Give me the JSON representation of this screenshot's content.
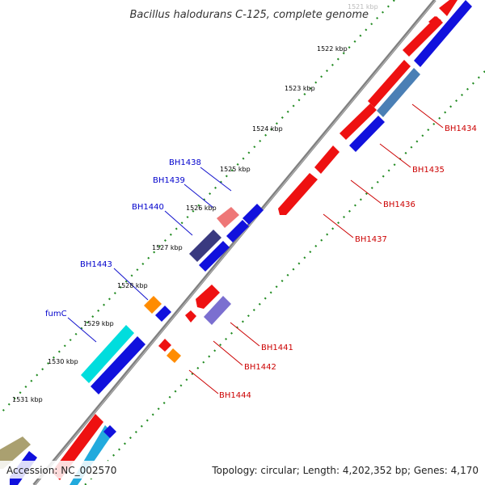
{
  "title": "Bacillus halodurans C-125, complete genome",
  "footer": {
    "accession": "Accession: NC_002570",
    "summary": "Topology: circular; Length: 4,202,352 bp; Genes: 4,170"
  },
  "colors": {
    "backbone": "#777777",
    "tick": "#228b22",
    "forward_label": "#0000cc",
    "reverse_label": "#cc0000",
    "red_gene": "#ee1111",
    "blue_gene": "#1111dd",
    "pink_gene": "#ee7777",
    "navy_gene": "#3a3a80",
    "steel_gene": "#4a7fb5",
    "lilac_gene": "#7b6fd0",
    "orange_gene": "#ff8c00",
    "cyan_gene": "#00dddd",
    "sky_gene": "#22aadd",
    "olive_gene": "#aaa070"
  },
  "ticks": [
    {
      "label": "1521 kbp",
      "faint": true
    },
    {
      "label": "1522 kbp"
    },
    {
      "label": "1523 kbp"
    },
    {
      "label": "1524 kbp"
    },
    {
      "label": "1525 kbp"
    },
    {
      "label": "1526 kbp"
    },
    {
      "label": "1527 kbp"
    },
    {
      "label": "1528 kbp"
    },
    {
      "label": "1529 kbp"
    },
    {
      "label": "1530 kbp"
    },
    {
      "label": "1531 kbp"
    }
  ],
  "forward_labels": [
    "BH1438",
    "BH1439",
    "BH1440",
    "BH1443",
    "fumC"
  ],
  "reverse_labels": [
    "BH1434",
    "BH1435",
    "BH1436",
    "BH1437",
    "BH1441",
    "BH1442",
    "BH1444"
  ]
}
